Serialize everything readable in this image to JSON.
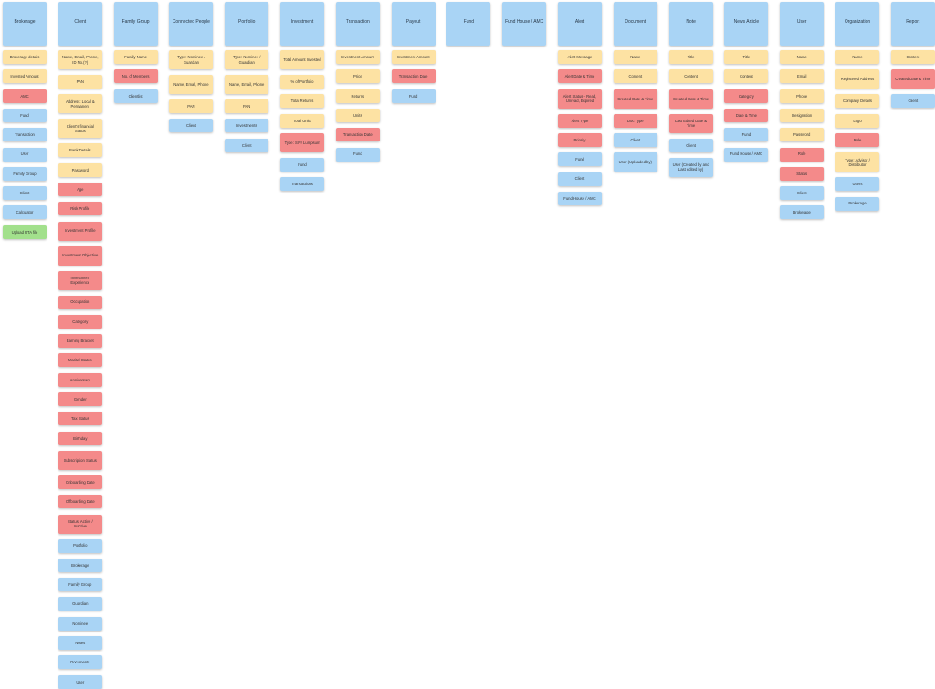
{
  "colors": {
    "header": "#a9d4f5",
    "field": "#fde2a3",
    "new_field": "#f48a8a",
    "relation": "#a9d4f5",
    "action": "#a2e08c"
  },
  "columns": [
    {
      "title": "Brokerage",
      "cards": [
        {
          "label": "Brokerage details",
          "type": "field"
        },
        {
          "label": "Invested Amount",
          "type": "field"
        },
        {
          "label": "AMC",
          "type": "new_field"
        },
        {
          "label": "Fund",
          "type": "relation"
        },
        {
          "label": "Transaction",
          "type": "relation"
        },
        {
          "label": "User",
          "type": "relation"
        },
        {
          "label": "Family Group",
          "type": "relation"
        },
        {
          "label": "Client",
          "type": "relation"
        },
        {
          "label": "Calculator",
          "type": "relation"
        },
        {
          "label": "Upload RTA file",
          "type": "action"
        }
      ]
    },
    {
      "title": "Client",
      "cards": [
        {
          "label": "Name, Email, Phone, ID No.(?)",
          "type": "field"
        },
        {
          "label": "PAN",
          "type": "field"
        },
        {
          "label": "Address: Local & Permanent",
          "type": "field"
        },
        {
          "label": "Client's financial Status",
          "type": "field"
        },
        {
          "label": "Bank Details",
          "type": "field"
        },
        {
          "label": "Password",
          "type": "field"
        },
        {
          "label": "Age",
          "type": "new_field"
        },
        {
          "label": "Risk Profile",
          "type": "new_field"
        },
        {
          "label": "Investment Profile",
          "type": "new_field"
        },
        {
          "label": "Investment Objective",
          "type": "new_field"
        },
        {
          "label": "Investment Experience",
          "type": "new_field"
        },
        {
          "label": "Occupation",
          "type": "new_field"
        },
        {
          "label": "Category",
          "type": "new_field"
        },
        {
          "label": "Earning Bracket",
          "type": "new_field"
        },
        {
          "label": "Marital Status",
          "type": "new_field"
        },
        {
          "label": "Anniversary",
          "type": "new_field"
        },
        {
          "label": "Gender",
          "type": "new_field"
        },
        {
          "label": "Tax Status",
          "type": "new_field"
        },
        {
          "label": "Birthday",
          "type": "new_field"
        },
        {
          "label": "Subscription Status",
          "type": "new_field"
        },
        {
          "label": "Onboarding Date",
          "type": "new_field"
        },
        {
          "label": "Offboarding Date",
          "type": "new_field"
        },
        {
          "label": "Status: Active / Inactive",
          "type": "new_field"
        },
        {
          "label": "Portfolio",
          "type": "relation"
        },
        {
          "label": "Brokerage",
          "type": "relation"
        },
        {
          "label": "Family Group",
          "type": "relation"
        },
        {
          "label": "Guardian",
          "type": "relation"
        },
        {
          "label": "Nominee",
          "type": "relation"
        },
        {
          "label": "Notes",
          "type": "relation"
        },
        {
          "label": "Documents",
          "type": "relation"
        },
        {
          "label": "User",
          "type": "relation"
        }
      ]
    },
    {
      "title": "Family Group",
      "cards": [
        {
          "label": "Family Name",
          "type": "field"
        },
        {
          "label": "No. of Members",
          "type": "new_field"
        },
        {
          "label": "Clientlist",
          "type": "relation"
        }
      ]
    },
    {
      "title": "Connected People",
      "cards": [
        {
          "label": "Type: Nominee / Guardian",
          "type": "field"
        },
        {
          "label": "Name, Email, Phone",
          "type": "field"
        },
        {
          "label": "PAN",
          "type": "field"
        },
        {
          "label": "Client",
          "type": "relation"
        }
      ]
    },
    {
      "title": "Portfolio",
      "cards": [
        {
          "label": "Type: Nominee / Guardian",
          "type": "field"
        },
        {
          "label": "Name, Email, Phone",
          "type": "field"
        },
        {
          "label": "PAN",
          "type": "field"
        },
        {
          "label": "Investments",
          "type": "relation"
        },
        {
          "label": "Client",
          "type": "relation"
        }
      ]
    },
    {
      "title": "Investment",
      "cards": [
        {
          "label": "Total Amount Invested",
          "type": "field"
        },
        {
          "label": "% of Portfolio",
          "type": "field"
        },
        {
          "label": "Total Returns",
          "type": "field"
        },
        {
          "label": "Total Units",
          "type": "field"
        },
        {
          "label": "Type: SIP/ Lumpsum",
          "type": "new_field"
        },
        {
          "label": "Fund",
          "type": "relation"
        },
        {
          "label": "Transactions",
          "type": "relation"
        }
      ]
    },
    {
      "title": "Transaction",
      "cards": [
        {
          "label": "Investment Amount",
          "type": "field"
        },
        {
          "label": "Price",
          "type": "field"
        },
        {
          "label": "Returns",
          "type": "field"
        },
        {
          "label": "Units",
          "type": "field"
        },
        {
          "label": "Transaction Date",
          "type": "new_field"
        },
        {
          "label": "Fund",
          "type": "relation"
        }
      ]
    },
    {
      "title": "Payout",
      "cards": [
        {
          "label": "Investment Amount",
          "type": "field"
        },
        {
          "label": "Transaction Date",
          "type": "new_field"
        },
        {
          "label": "Fund",
          "type": "relation"
        }
      ]
    },
    {
      "title": "Fund",
      "cards": []
    },
    {
      "title": "Fund House / AMC",
      "cards": []
    },
    {
      "title": "Alert",
      "cards": [
        {
          "label": "Alert Message",
          "type": "field"
        },
        {
          "label": "Alert Date & Time",
          "type": "new_field"
        },
        {
          "label": "Alert Status - Read, Unread, Expired",
          "type": "new_field"
        },
        {
          "label": "Alert Type",
          "type": "new_field"
        },
        {
          "label": "Priority",
          "type": "new_field"
        },
        {
          "label": "Fund",
          "type": "relation"
        },
        {
          "label": "Client",
          "type": "relation"
        },
        {
          "label": "Fund House / AMC",
          "type": "relation"
        }
      ]
    },
    {
      "title": "Document",
      "cards": [
        {
          "label": "Name",
          "type": "field"
        },
        {
          "label": "Content",
          "type": "field"
        },
        {
          "label": "Created Date & Time",
          "type": "new_field"
        },
        {
          "label": "Doc Type",
          "type": "new_field"
        },
        {
          "label": "Client",
          "type": "relation"
        },
        {
          "label": "User (Uploaded by)",
          "type": "relation"
        }
      ]
    },
    {
      "title": "Note",
      "cards": [
        {
          "label": "Title",
          "type": "field"
        },
        {
          "label": "Content",
          "type": "field"
        },
        {
          "label": "Created Date & Time",
          "type": "new_field"
        },
        {
          "label": "Last Edited Date & Time",
          "type": "new_field"
        },
        {
          "label": "Client",
          "type": "relation"
        },
        {
          "label": "User (Created by and Last edited by)",
          "type": "relation"
        }
      ]
    },
    {
      "title": "News Article",
      "cards": [
        {
          "label": "Title",
          "type": "field"
        },
        {
          "label": "Content",
          "type": "field"
        },
        {
          "label": "Category",
          "type": "new_field"
        },
        {
          "label": "Date & Time",
          "type": "new_field"
        },
        {
          "label": "Fund",
          "type": "relation"
        },
        {
          "label": "Fund House / AMC",
          "type": "relation"
        }
      ]
    },
    {
      "title": "User",
      "cards": [
        {
          "label": "Name",
          "type": "field"
        },
        {
          "label": "Email",
          "type": "field"
        },
        {
          "label": "Phone",
          "type": "field"
        },
        {
          "label": "Designation",
          "type": "field"
        },
        {
          "label": "Password",
          "type": "field"
        },
        {
          "label": "Role",
          "type": "new_field"
        },
        {
          "label": "Status",
          "type": "new_field"
        },
        {
          "label": "Client",
          "type": "relation"
        },
        {
          "label": "Brokerage",
          "type": "relation"
        }
      ]
    },
    {
      "title": "Organization",
      "cards": [
        {
          "label": "Name",
          "type": "field"
        },
        {
          "label": "Registered Address",
          "type": "field"
        },
        {
          "label": "Company Details",
          "type": "field"
        },
        {
          "label": "Logo",
          "type": "field"
        },
        {
          "label": "Role",
          "type": "new_field"
        },
        {
          "label": "Type: Advisor / Distributor",
          "type": "field"
        },
        {
          "label": "Users",
          "type": "relation"
        },
        {
          "label": "Brokerage",
          "type": "relation"
        }
      ]
    },
    {
      "title": "Report",
      "cards": [
        {
          "label": "Content",
          "type": "field"
        },
        {
          "label": "Created Date & Time",
          "type": "new_field"
        },
        {
          "label": "Client",
          "type": "relation"
        }
      ]
    }
  ]
}
